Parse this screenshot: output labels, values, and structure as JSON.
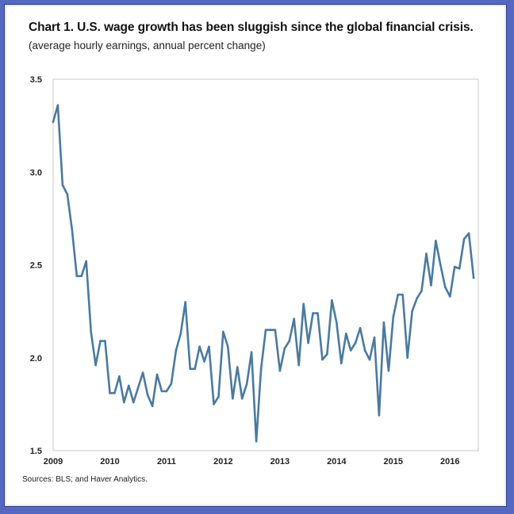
{
  "chart_data": {
    "type": "line",
    "title": "Chart 1. U.S. wage growth has been sluggish since the global financial crisis.",
    "subtitle": "(average hourly earnings, annual percent change)",
    "source": "Sources: BLS; and Haver Analytics.",
    "xlabel": "",
    "ylabel": "",
    "xlim": [
      2009.0,
      2016.5
    ],
    "ylim": [
      1.5,
      3.5
    ],
    "grid": false,
    "legend": "none",
    "x_ticks": [
      "2009",
      "2010",
      "2011",
      "2012",
      "2013",
      "2014",
      "2015",
      "2016"
    ],
    "y_ticks": [
      "3.5",
      "3.0",
      "2.5",
      "2.0",
      "1.5"
    ],
    "line_color": "#4a7aa0",
    "series": [
      {
        "x": [
          2009.0,
          2009.083,
          2009.167,
          2009.25,
          2009.333,
          2009.417,
          2009.5,
          2009.583,
          2009.667,
          2009.75,
          2009.833,
          2009.917,
          2010.0,
          2010.083,
          2010.167,
          2010.25,
          2010.333,
          2010.417,
          2010.5,
          2010.583,
          2010.667,
          2010.75,
          2010.833,
          2010.917,
          2011.0,
          2011.083,
          2011.167,
          2011.25,
          2011.333,
          2011.417,
          2011.5,
          2011.583,
          2011.667,
          2011.75,
          2011.833,
          2011.917,
          2012.0,
          2012.083,
          2012.167,
          2012.25,
          2012.333,
          2012.417,
          2012.5,
          2012.583,
          2012.667,
          2012.75,
          2012.833,
          2012.917,
          2013.0,
          2013.083,
          2013.167,
          2013.25,
          2013.333,
          2013.417,
          2013.5,
          2013.583,
          2013.667,
          2013.75,
          2013.833,
          2013.917,
          2014.0,
          2014.083,
          2014.167,
          2014.25,
          2014.333,
          2014.417,
          2014.5,
          2014.583,
          2014.667,
          2014.75,
          2014.833,
          2014.917,
          2015.0,
          2015.083,
          2015.167,
          2015.25,
          2015.333,
          2015.417,
          2015.5,
          2015.583,
          2015.667,
          2015.75,
          2015.833,
          2015.917,
          2016.0,
          2016.083,
          2016.167,
          2016.25,
          2016.333,
          2016.417
        ],
        "values": [
          3.27,
          3.36,
          2.93,
          2.88,
          2.69,
          2.44,
          2.44,
          2.52,
          2.14,
          1.96,
          2.09,
          2.09,
          1.81,
          1.81,
          1.9,
          1.76,
          1.85,
          1.76,
          1.84,
          1.92,
          1.8,
          1.74,
          1.91,
          1.82,
          1.82,
          1.86,
          2.04,
          2.13,
          2.3,
          1.94,
          1.94,
          2.06,
          1.98,
          2.06,
          1.75,
          1.79,
          2.14,
          2.06,
          1.78,
          1.95,
          1.78,
          1.86,
          2.03,
          1.55,
          1.94,
          2.15,
          2.15,
          2.15,
          1.93,
          2.05,
          2.09,
          2.21,
          1.96,
          2.29,
          2.08,
          2.24,
          2.24,
          1.99,
          2.02,
          2.31,
          2.19,
          1.97,
          2.13,
          2.04,
          2.08,
          2.16,
          2.04,
          1.99,
          2.11,
          1.69,
          2.19,
          1.93,
          2.22,
          2.34,
          2.34,
          2.0,
          2.25,
          2.32,
          2.36,
          2.56,
          2.39,
          2.63,
          2.5,
          2.38,
          2.33,
          2.49,
          2.48,
          2.64,
          2.67,
          2.43
        ]
      }
    ]
  }
}
